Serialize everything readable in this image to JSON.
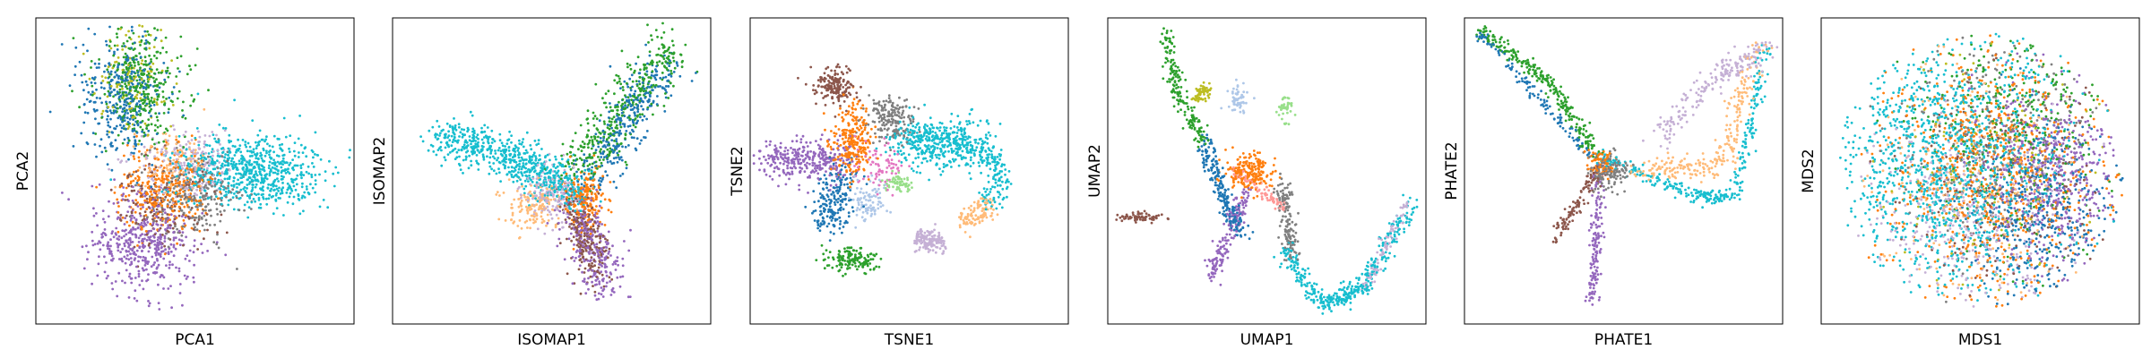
{
  "chart_data": [
    {
      "type": "scatter",
      "xlabel": "PCA1",
      "ylabel": "PCA2"
    },
    {
      "type": "scatter",
      "xlabel": "ISOMAP1",
      "ylabel": "ISOMAP2"
    },
    {
      "type": "scatter",
      "xlabel": "TSNE1",
      "ylabel": "TSNE2"
    },
    {
      "type": "scatter",
      "xlabel": "UMAP1",
      "ylabel": "UMAP2"
    },
    {
      "type": "scatter",
      "xlabel": "PHATE1",
      "ylabel": "PHATE2"
    },
    {
      "type": "scatter",
      "xlabel": "MDS1",
      "ylabel": "MDS2"
    }
  ],
  "palette": {
    "blue": "#1f77b4",
    "orange": "#ff7f0e",
    "green": "#2ca02c",
    "red": "#d62728",
    "purple": "#9467bd",
    "brown": "#8c564b",
    "pink": "#e377c2",
    "gray": "#7f7f7f",
    "olive": "#bcbd22",
    "cyan": "#17becf",
    "light_blue": "#aec7e8",
    "light_orange": "#ffbb78",
    "light_green": "#98df8a",
    "light_red": "#ff9896",
    "light_purple": "#c5b0d5"
  }
}
